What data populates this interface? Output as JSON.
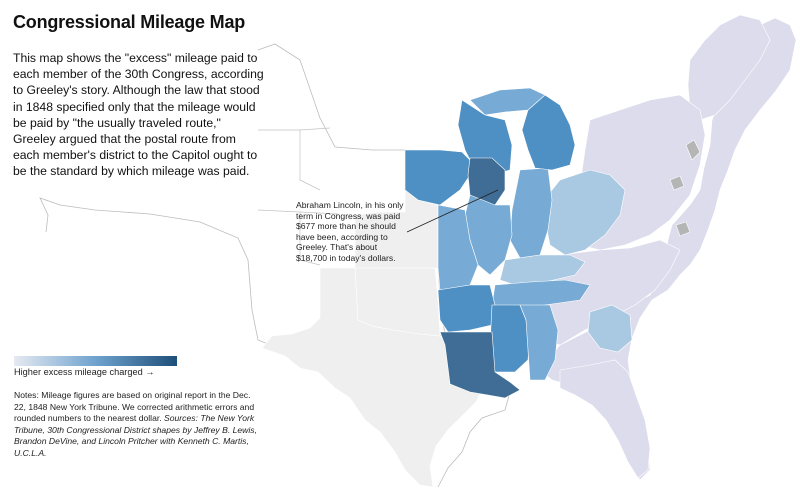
{
  "title": "Congressional Mileage Map",
  "intro": "This map shows the \"excess\" mileage paid to each member of the 30th Congress, according to Greeley's story. Although the law that stood in 1848 specified only that the mileage would be paid by \"the usually traveled route,\" Greeley argued that the postal route from each member's district to the Capitol ought to be the standard by which mileage was paid.",
  "callout": "Abraham Lincoln, in his only term in Congress, was paid $677 more than he should have been, according to Greeley. That's about $18,700 in today's dollars.",
  "legend": {
    "label": "Higher excess mileage charged →",
    "colors": [
      "#e6eaf2",
      "#6fa2ce",
      "#1d4f79"
    ]
  },
  "notes": {
    "text": "Notes: Mileage figures are based on original report in the Dec. 22, 1848 New York Tribune. We corrected arithmetic errors and rounded numbers to the nearest dollar.",
    "sources": "Sources: The New York Tribune, 30th Congressional District shapes by Jeffrey B. Lewis, Brandon DeVine, and Lincoln Pritcher with Kenneth C. Martis, U.C.L.A."
  },
  "map": {
    "colors": {
      "territory": "#efefef",
      "low": "#dcdcec",
      "light": "#a9c8e2",
      "mid": "#77aad4",
      "strong": "#4f90c4",
      "dark": "#3f6d95",
      "no_data": "#b5b5b5"
    }
  }
}
